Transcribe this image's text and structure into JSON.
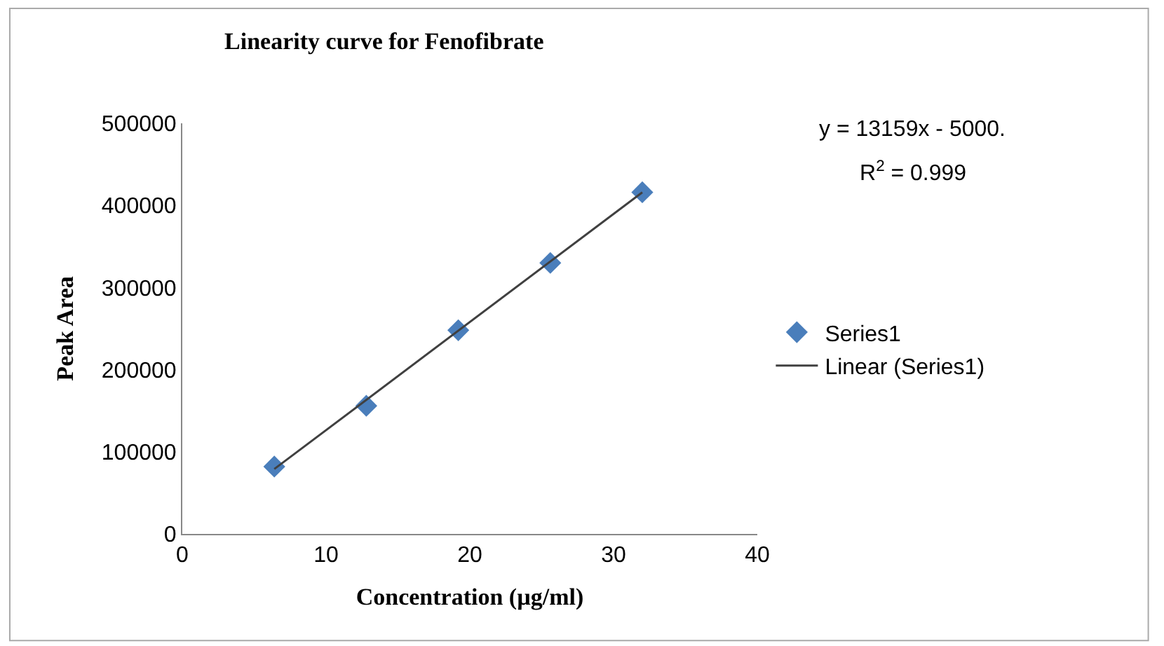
{
  "chart_data": {
    "type": "scatter",
    "title": "Linearity curve for Fenofibrate",
    "xlabel": "Concentration (µg/ml)",
    "ylabel": "Peak Area",
    "xlim": [
      0,
      40
    ],
    "xticks": [
      0,
      10,
      20,
      30,
      40
    ],
    "ylim": [
      0,
      500000
    ],
    "yticks": [
      0,
      100000,
      200000,
      300000,
      400000,
      500000
    ],
    "legend": "right",
    "annotations": [
      "y = 13159x - 5000.",
      "R$^{2}$ = 0.999"
    ],
    "series": [
      {
        "name": "Series1",
        "marker": "diamond",
        "color": "#4a7ebb",
        "x": [
          6.4,
          12.8,
          19.2,
          25.6,
          32
        ],
        "values": [
          82000,
          156000,
          248000,
          330000,
          416000
        ]
      },
      {
        "name": "Linear (Series1)",
        "type": "line",
        "color": "#404040",
        "x": [
          6.4,
          32
        ],
        "values": [
          79000,
          416000
        ]
      }
    ]
  }
}
